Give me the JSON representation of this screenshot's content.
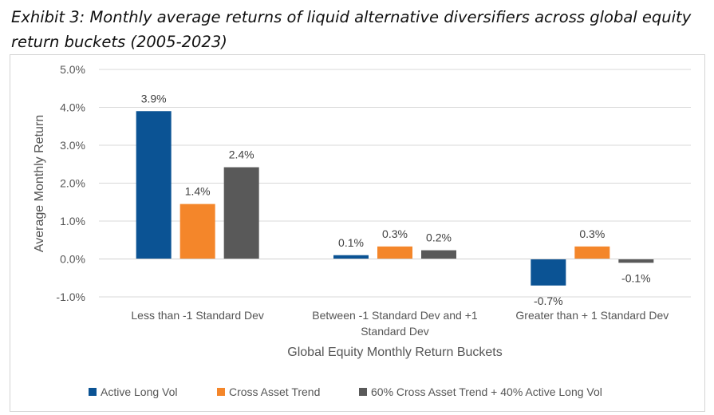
{
  "header": {
    "title_line1": "Exhibit 3: Monthly average returns of liquid alternative diversifiers across global equity",
    "title_line2": "return buckets (2005-2023)"
  },
  "chart_data": {
    "type": "bar",
    "categories": [
      [
        "Less than  -1 Standard Dev"
      ],
      [
        "Between -1 Standard Dev  and +1",
        "Standard Dev"
      ],
      [
        "Greater than  + 1 Standard Dev"
      ]
    ],
    "series": [
      {
        "name": "Active Long Vol",
        "color": "#0b5394",
        "values": [
          3.9,
          0.1,
          -0.7
        ],
        "labels": [
          "3.9%",
          "0.1%",
          "-0.7%"
        ]
      },
      {
        "name": "Cross Asset Trend",
        "color": "#f4862a",
        "values": [
          1.45,
          0.33,
          0.33
        ],
        "labels": [
          "1.4%",
          "0.3%",
          "0.3%"
        ]
      },
      {
        "name": "60% Cross Asset Trend + 40% Active Long Vol",
        "color": "#595959",
        "values": [
          2.42,
          0.23,
          -0.1
        ],
        "labels": [
          "2.4%",
          "0.2%",
          "-0.1%"
        ]
      }
    ],
    "xlabel": "Global Equity Monthly Return Buckets",
    "ylabel": "Average Monthly Return",
    "ylim": [
      -1.0,
      5.0
    ],
    "yticks": [
      "-1.0%",
      "0.0%",
      "1.0%",
      "2.0%",
      "3.0%",
      "4.0%",
      "5.0%"
    ],
    "grid": true,
    "legend_position": "bottom"
  }
}
